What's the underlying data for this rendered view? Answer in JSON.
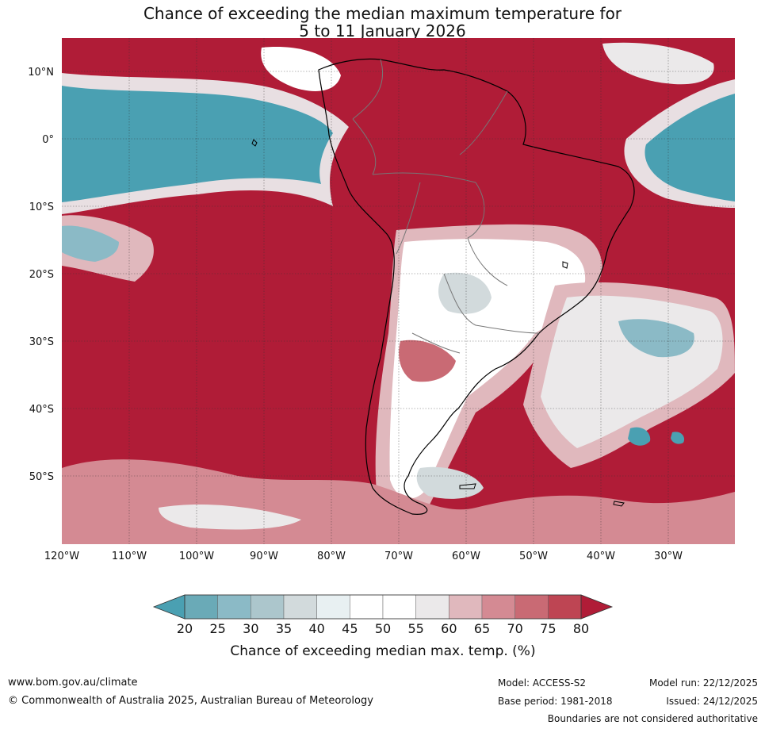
{
  "map": {
    "title_line1": "Chance of exceeding the median maximum temperature for",
    "title_line2": "5 to 11 January 2026",
    "lat_labels": [
      "10°N",
      "0°",
      "10°S",
      "20°S",
      "30°S",
      "40°S",
      "50°S"
    ],
    "lon_labels": [
      "120°W",
      "110°W",
      "100°W",
      "90°W",
      "80°W",
      "70°W",
      "60°W",
      "50°W",
      "40°W",
      "30°W"
    ],
    "colorbar": {
      "title": "Chance of exceeding median max. temp. (%)",
      "tick_labels": [
        "20",
        "25",
        "30",
        "35",
        "40",
        "45",
        "50",
        "55",
        "60",
        "65",
        "70",
        "75",
        "80"
      ],
      "colors": [
        "#4aa0b2",
        "#6aaab7",
        "#8bbac6",
        "#acc6cc",
        "#d2dadc",
        "#e8f0f2",
        "#ffffff",
        "#ffffff",
        "#ebe9ea",
        "#e0b8bd",
        "#d48a93",
        "#c96a74",
        "#be4553",
        "#b01c37"
      ],
      "low_color": "#4aa0b2",
      "high_color": "#b01c37"
    }
  },
  "footer": {
    "website": "www.bom.gov.au/climate",
    "copyright": "© Commonwealth of Australia 2025, Australian Bureau of Meteorology",
    "model": "Model: ACCESS-S2",
    "base_period": "Base period: 1981-2018",
    "model_run": "Model run: 22/12/2025",
    "issued": "Issued: 24/12/2025",
    "disclaimer": "Boundaries are not considered authoritative"
  }
}
